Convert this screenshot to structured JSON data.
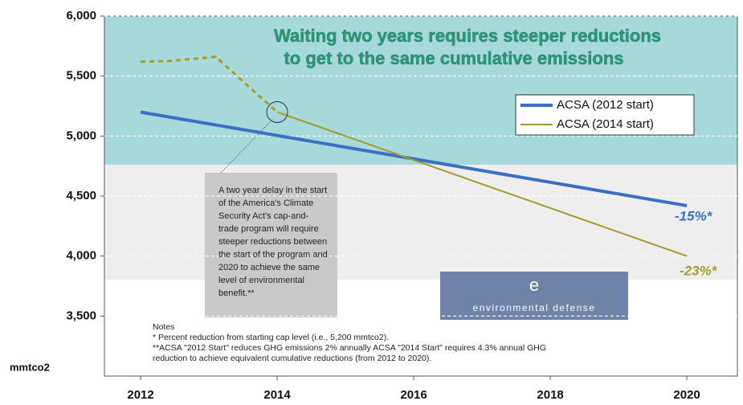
{
  "chart_data": {
    "type": "line",
    "title": [
      "Waiting two years requires steeper reductions",
      "to get to the same cumulative emissions"
    ],
    "ylabel": "mmtco2",
    "xlim": [
      2011.47,
      2020.74
    ],
    "xticks": [
      2012,
      2014,
      2016,
      2018,
      2020
    ],
    "ylim": [
      3000,
      6000
    ],
    "yticks": [
      {
        "value": 3500,
        "label": "3,500"
      },
      {
        "value": 4000,
        "label": "4,000"
      },
      {
        "value": 4500,
        "label": "4,500"
      },
      {
        "value": 5000,
        "label": "5,000"
      },
      {
        "value": 5500,
        "label": "5,500"
      },
      {
        "value": 6000,
        "label": "6,000"
      }
    ],
    "grid": true,
    "legend": "upper right",
    "series": [
      {
        "name": "ACSA (2012 start)",
        "color": "#3a6fc4",
        "x": [
          2012,
          2020
        ],
        "values": [
          5200,
          4420
        ]
      },
      {
        "name": "ACSA (2014 start)",
        "color": "#a59a2a",
        "x": [
          2014,
          2020
        ],
        "values": [
          5200,
          4000
        ]
      },
      {
        "color": "#a59a2a",
        "dashed": true,
        "x": [
          2012,
          2012.4,
          2013.1,
          2014
        ],
        "values": [
          5620,
          5625,
          5660,
          5200
        ]
      }
    ],
    "annotations": [
      {
        "text": "-15%*",
        "color": "#3a6fc4"
      },
      {
        "text": "-23%*",
        "color": "#a59a2a"
      }
    ],
    "callout": [
      "A two year delay in the start",
      "of the America's Climate",
      "Security Act's cap-and-",
      "trade program will require",
      "steeper reductions between",
      "the start of the program and",
      "2020 to achieve the same",
      "level of environmental",
      "benefit.**"
    ],
    "logo": {
      "mark": "e",
      "text": "environmental defense"
    },
    "notes": [
      "Notes",
      "* Percent reduction from starting cap level (i.e., 5,200 mmtco2).",
      "**ACSA \"2012 Start\" reduces GHG emissions 2% annually ACSA \"2014 Start\" requires 4.3% annual GHG",
      "reduction to achieve equivalent cumulative reductions (from 2012 to 2020)."
    ]
  }
}
